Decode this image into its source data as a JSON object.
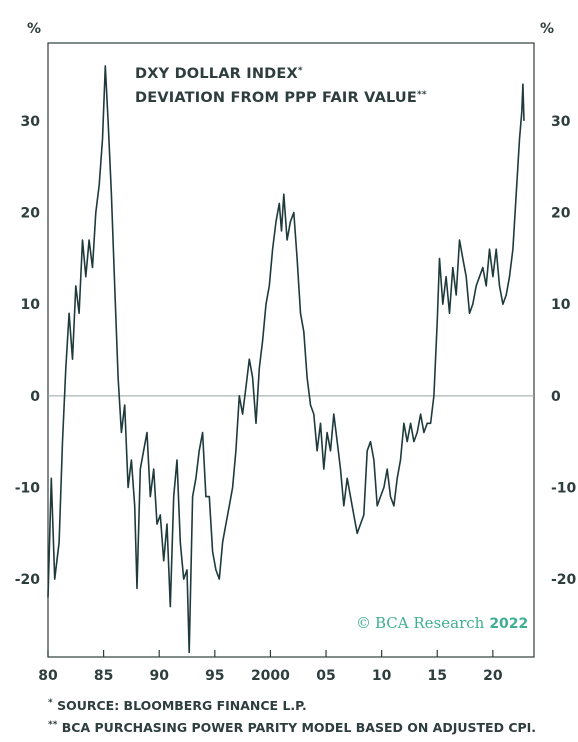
{
  "chart_data": {
    "type": "line",
    "title_line1": "DXY DOLLAR INDEX",
    "title_line1_mark": "*",
    "title_line2": "DEVIATION FROM PPP FAIR VALUE",
    "title_line2_mark": "**",
    "y_unit_left": "%",
    "y_unit_right": "%",
    "ylim": [
      -28.5,
      38.5
    ],
    "xlim": [
      1980,
      2023.7
    ],
    "y_ticks": [
      30,
      20,
      10,
      0,
      -10,
      -20
    ],
    "x_ticks": [
      {
        "value": 1980,
        "label": "80"
      },
      {
        "value": 1985,
        "label": "85"
      },
      {
        "value": 1990,
        "label": "90"
      },
      {
        "value": 1995,
        "label": "95"
      },
      {
        "value": 2000,
        "label": "2000"
      },
      {
        "value": 2005,
        "label": "05"
      },
      {
        "value": 2010,
        "label": "10"
      },
      {
        "value": 2015,
        "label": "15"
      },
      {
        "value": 2020,
        "label": "20"
      }
    ],
    "zero_line": 0,
    "series": [
      {
        "color": "#1f3a3d",
        "points": [
          [
            1980.0,
            -22
          ],
          [
            1980.3,
            -9
          ],
          [
            1980.6,
            -20
          ],
          [
            1981.0,
            -16
          ],
          [
            1981.3,
            -5
          ],
          [
            1981.6,
            3
          ],
          [
            1981.9,
            9
          ],
          [
            1982.2,
            4
          ],
          [
            1982.5,
            12
          ],
          [
            1982.8,
            9
          ],
          [
            1983.1,
            17
          ],
          [
            1983.4,
            13
          ],
          [
            1983.7,
            17
          ],
          [
            1984.0,
            14
          ],
          [
            1984.3,
            20
          ],
          [
            1984.6,
            23
          ],
          [
            1984.9,
            28
          ],
          [
            1985.15,
            36
          ],
          [
            1985.4,
            30
          ],
          [
            1985.7,
            22
          ],
          [
            1986.0,
            12
          ],
          [
            1986.3,
            2
          ],
          [
            1986.6,
            -4
          ],
          [
            1986.9,
            -1
          ],
          [
            1987.2,
            -10
          ],
          [
            1987.5,
            -7
          ],
          [
            1987.8,
            -12
          ],
          [
            1988.0,
            -21
          ],
          [
            1988.3,
            -8
          ],
          [
            1988.6,
            -6
          ],
          [
            1988.9,
            -4
          ],
          [
            1989.2,
            -11
          ],
          [
            1989.5,
            -8
          ],
          [
            1989.8,
            -14
          ],
          [
            1990.1,
            -13
          ],
          [
            1990.4,
            -18
          ],
          [
            1990.7,
            -14
          ],
          [
            1991.0,
            -23
          ],
          [
            1991.3,
            -11
          ],
          [
            1991.6,
            -7
          ],
          [
            1991.9,
            -16
          ],
          [
            1992.2,
            -20
          ],
          [
            1992.5,
            -19
          ],
          [
            1992.7,
            -28
          ],
          [
            1993.0,
            -11
          ],
          [
            1993.3,
            -9
          ],
          [
            1993.6,
            -6
          ],
          [
            1993.9,
            -4
          ],
          [
            1994.2,
            -11
          ],
          [
            1994.5,
            -11
          ],
          [
            1994.8,
            -17
          ],
          [
            1995.1,
            -19
          ],
          [
            1995.4,
            -20
          ],
          [
            1995.7,
            -16
          ],
          [
            1996.0,
            -14
          ],
          [
            1996.3,
            -12
          ],
          [
            1996.6,
            -10
          ],
          [
            1996.9,
            -6
          ],
          [
            1997.2,
            0
          ],
          [
            1997.5,
            -2
          ],
          [
            1997.8,
            1
          ],
          [
            1998.1,
            4
          ],
          [
            1998.4,
            2
          ],
          [
            1998.7,
            -3
          ],
          [
            1999.0,
            3
          ],
          [
            1999.3,
            6
          ],
          [
            1999.6,
            10
          ],
          [
            1999.9,
            12
          ],
          [
            2000.2,
            16
          ],
          [
            2000.5,
            19
          ],
          [
            2000.8,
            21
          ],
          [
            2001.0,
            18
          ],
          [
            2001.2,
            22
          ],
          [
            2001.5,
            17
          ],
          [
            2001.8,
            19
          ],
          [
            2002.1,
            20
          ],
          [
            2002.4,
            15
          ],
          [
            2002.7,
            9
          ],
          [
            2003.0,
            7
          ],
          [
            2003.3,
            2
          ],
          [
            2003.6,
            -1
          ],
          [
            2003.9,
            -2
          ],
          [
            2004.2,
            -6
          ],
          [
            2004.5,
            -3
          ],
          [
            2004.8,
            -8
          ],
          [
            2005.1,
            -4
          ],
          [
            2005.4,
            -6
          ],
          [
            2005.7,
            -2
          ],
          [
            2006.0,
            -5
          ],
          [
            2006.3,
            -8
          ],
          [
            2006.6,
            -12
          ],
          [
            2006.9,
            -9
          ],
          [
            2007.2,
            -11
          ],
          [
            2007.5,
            -13
          ],
          [
            2007.8,
            -15
          ],
          [
            2008.1,
            -14
          ],
          [
            2008.4,
            -13
          ],
          [
            2008.7,
            -6
          ],
          [
            2009.0,
            -5
          ],
          [
            2009.3,
            -7
          ],
          [
            2009.6,
            -12
          ],
          [
            2009.9,
            -11
          ],
          [
            2010.2,
            -10
          ],
          [
            2010.5,
            -8
          ],
          [
            2010.8,
            -11
          ],
          [
            2011.1,
            -12
          ],
          [
            2011.4,
            -9
          ],
          [
            2011.7,
            -7
          ],
          [
            2012.0,
            -3
          ],
          [
            2012.3,
            -5
          ],
          [
            2012.6,
            -3
          ],
          [
            2012.9,
            -5
          ],
          [
            2013.2,
            -4
          ],
          [
            2013.5,
            -2
          ],
          [
            2013.8,
            -4
          ],
          [
            2014.1,
            -3
          ],
          [
            2014.4,
            -3
          ],
          [
            2014.7,
            0
          ],
          [
            2015.0,
            8
          ],
          [
            2015.2,
            15
          ],
          [
            2015.5,
            10
          ],
          [
            2015.8,
            13
          ],
          [
            2016.1,
            9
          ],
          [
            2016.4,
            14
          ],
          [
            2016.7,
            11
          ],
          [
            2017.0,
            17
          ],
          [
            2017.3,
            15
          ],
          [
            2017.6,
            13
          ],
          [
            2017.9,
            9
          ],
          [
            2018.2,
            10
          ],
          [
            2018.5,
            12
          ],
          [
            2018.8,
            13
          ],
          [
            2019.1,
            14
          ],
          [
            2019.4,
            12
          ],
          [
            2019.7,
            16
          ],
          [
            2020.0,
            13
          ],
          [
            2020.3,
            16
          ],
          [
            2020.6,
            12
          ],
          [
            2020.9,
            10
          ],
          [
            2021.2,
            11
          ],
          [
            2021.5,
            13
          ],
          [
            2021.8,
            16
          ],
          [
            2022.1,
            22
          ],
          [
            2022.4,
            28
          ],
          [
            2022.6,
            31
          ],
          [
            2022.7,
            34
          ],
          [
            2022.8,
            30
          ]
        ]
      }
    ]
  },
  "brand": {
    "copyright_mark": "©",
    "name": "BCA Research",
    "year": "2022"
  },
  "footnotes": [
    {
      "mark": "*",
      "text": "SOURCE: BLOOMBERG FINANCE L.P."
    },
    {
      "mark": "**",
      "text": "BCA PURCHASING POWER PARITY MODEL BASED ON ADJUSTED CPI."
    }
  ],
  "colors": {
    "line": "#1f3a3d",
    "frame": "#2e3d3d",
    "zero_line": "#9aa3a3",
    "brand": "#3fae92"
  }
}
